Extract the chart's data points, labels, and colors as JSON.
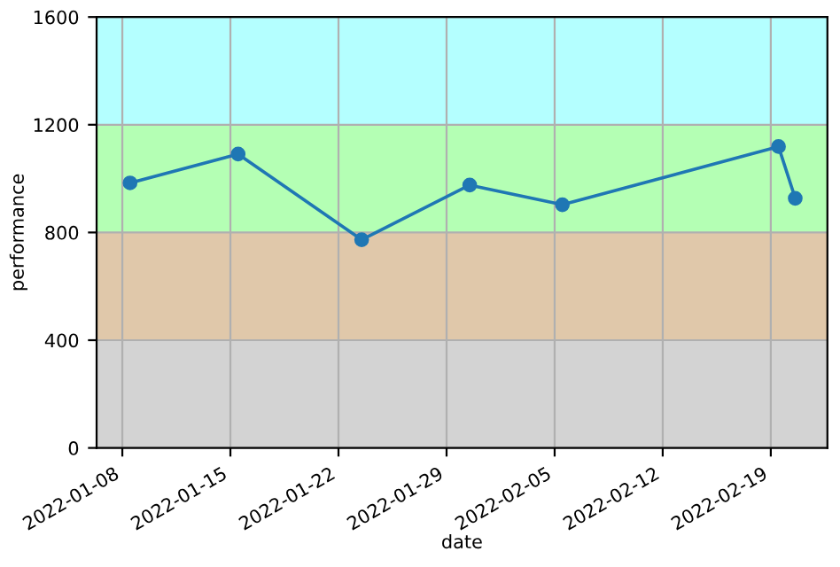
{
  "chart_data": {
    "type": "line",
    "xlabel": "date",
    "ylabel": "performance",
    "x": [
      "2022-01-08T12:00",
      "2022-01-15T12:00",
      "2022-01-23T12:00",
      "2022-01-30T12:00",
      "2022-02-05T12:00",
      "2022-02-19T12:00",
      "2022-02-20T14:00"
    ],
    "series": [
      {
        "color": "#1f77b4",
        "values": [
          984,
          1091,
          773,
          976,
          903,
          1119,
          927
        ]
      }
    ],
    "xlim": [
      "2022-01-06T08:00",
      "2022-02-22T16:00"
    ],
    "xticks": [
      {
        "value": "2022-01-08",
        "label": "2022-01-08"
      },
      {
        "value": "2022-01-15",
        "label": "2022-01-15"
      },
      {
        "value": "2022-01-22",
        "label": "2022-01-22"
      },
      {
        "value": "2022-01-29",
        "label": "2022-01-29"
      },
      {
        "value": "2022-02-05",
        "label": "2022-02-05"
      },
      {
        "value": "2022-02-12",
        "label": "2022-02-12"
      },
      {
        "value": "2022-02-19",
        "label": "2022-02-19"
      }
    ],
    "ylim": [
      0,
      1600
    ],
    "yticks": [
      0,
      400,
      800,
      1200,
      1600
    ],
    "bands": [
      {
        "axis": "y",
        "from": 0,
        "to": 400,
        "color": "#d3d3d3"
      },
      {
        "axis": "y",
        "from": 400,
        "to": 800,
        "color": "#e0c8aa"
      },
      {
        "axis": "y",
        "from": 800,
        "to": 1200,
        "color": "#b4ffb4"
      },
      {
        "axis": "y",
        "from": 1200,
        "to": 1600,
        "color": "#b4ffff"
      }
    ],
    "grid": true,
    "marker": "circle",
    "line_style": "solid"
  }
}
